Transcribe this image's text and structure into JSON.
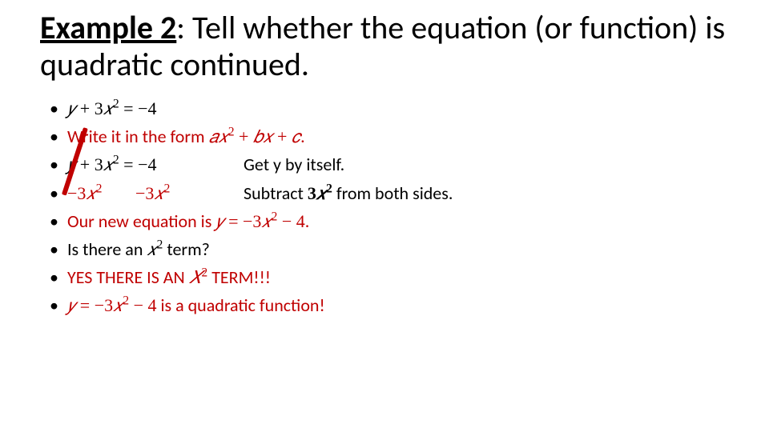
{
  "title": {
    "prefix": "Example 2",
    "rest": ": Tell whether the equation (or function) is quadratic continued."
  },
  "bullets": {
    "b1_eq": {
      "lhs_y": "𝑦",
      "plus": " + ",
      "three": "3",
      "x": "𝑥",
      "sq": "2",
      "eq": " = ",
      "rhs": "−4"
    },
    "b2": {
      "pre": "Write it in the form ",
      "a": "𝑎",
      "x": "𝑥",
      "sq": "2",
      "plus": " + ",
      "b": "𝑏",
      "x2": "𝑥",
      "plus2": " + ",
      "c": "𝑐",
      "dot": "."
    },
    "b3": {
      "eq_repeat": {
        "y": "𝑦",
        "plus": " + ",
        "three": "3",
        "x": "𝑥",
        "sq": "2",
        "eq": " = ",
        "rhs": "−4"
      },
      "note": "Get y by itself."
    },
    "b4": {
      "left_term": {
        "minus": "−",
        "three": "3",
        "x": "𝑥",
        "sq": "2"
      },
      "right_term": {
        "minus": "−",
        "three": "3",
        "x": "𝑥",
        "sq": "2"
      },
      "note_pre": "Subtract ",
      "note_term": {
        "three": "3",
        "x": "𝑥",
        "sq": "2"
      },
      "note_post": " from both sides."
    },
    "b5": {
      "pre": "Our new equation is ",
      "eq": {
        "y": "𝑦",
        "eq": " = ",
        "minus": "−",
        "three": "3",
        "x": "𝑥",
        "sq": "2",
        "minus2": " − ",
        "four": "4"
      },
      "dot": "."
    },
    "b6": {
      "pre": "Is there an ",
      "x": "𝑥",
      "sq": "2",
      "post": " term?"
    },
    "b7": {
      "pre": "YES THERE IS AN ",
      "x": "𝑋",
      "sq": "2",
      "post": " TERM!!!"
    },
    "b8": {
      "eq": {
        "y": "𝑦",
        "eq": " = ",
        "minus": "−",
        "three": "3",
        "x": "𝑥",
        "sq": "2",
        "minus2": " − ",
        "four": "4"
      },
      "post": " is a quadratic function!"
    }
  },
  "colors": {
    "red": "#c00000",
    "black": "#000000",
    "bg": "#ffffff"
  }
}
